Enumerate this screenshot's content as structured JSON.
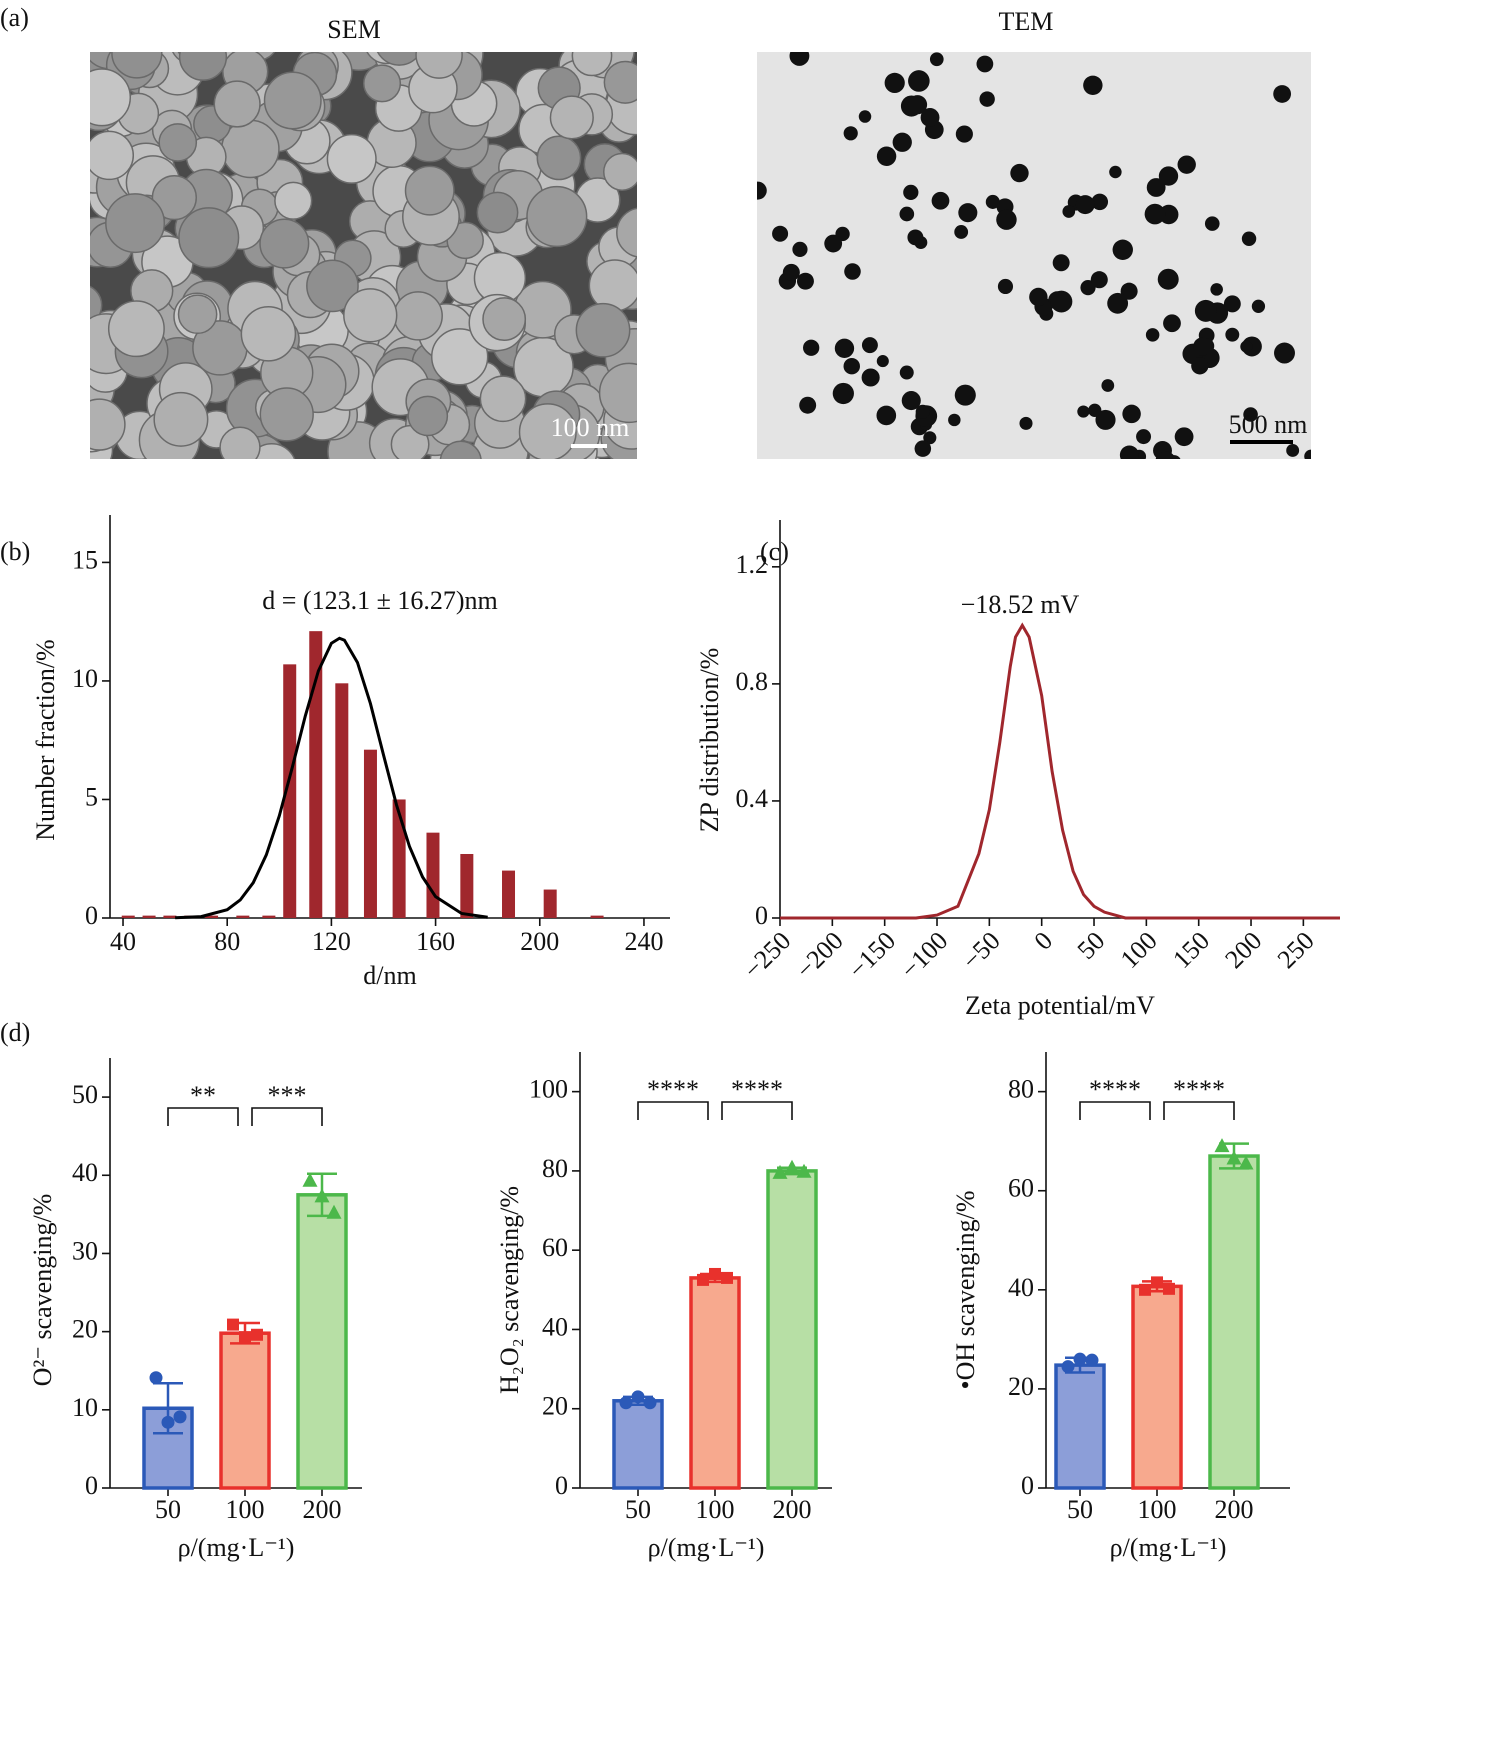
{
  "figure": {
    "panel_labels": [
      "(a)",
      "(b)",
      "(c)",
      "(d)"
    ],
    "images": [
      {
        "title": "SEM",
        "scale_bar": "100 nm"
      },
      {
        "title": "TEM",
        "scale_bar": "500 nm"
      }
    ]
  },
  "chart_data": [
    {
      "type": "bar",
      "x": [
        42,
        50,
        58,
        66,
        74,
        86,
        96,
        104,
        114,
        124,
        135,
        146,
        159,
        172,
        188,
        204,
        222
      ],
      "values": [
        0.1,
        0.1,
        0.1,
        0.1,
        0.1,
        0.1,
        0.1,
        10.7,
        12.1,
        9.9,
        7.1,
        5.0,
        3.6,
        2.7,
        2.0,
        1.2,
        0.1
      ],
      "color": "#a0272d",
      "annotation": "d = (123.1 ± 16.27)nm",
      "fit": {
        "color": "#000000",
        "x": [
          60,
          70,
          80,
          85,
          90,
          95,
          100,
          105,
          110,
          115,
          120,
          123.1,
          125,
          130,
          135,
          140,
          145,
          150,
          155,
          160,
          170,
          180
        ],
        "values": [
          0.01,
          0.06,
          0.35,
          0.76,
          1.49,
          2.66,
          4.31,
          6.36,
          8.53,
          10.42,
          11.59,
          11.8,
          11.72,
          10.78,
          9.04,
          6.88,
          4.77,
          3.01,
          1.73,
          0.9,
          0.19,
          0.03
        ]
      },
      "xlabel": "d/nm",
      "ylabel": "Number fraction/%",
      "xlim": [
        35,
        250
      ],
      "ylim": [
        0,
        17
      ],
      "xticks": [
        40,
        80,
        120,
        160,
        200,
        240
      ],
      "yticks": [
        0,
        5,
        10,
        15
      ]
    },
    {
      "type": "line",
      "x": [
        -250,
        -120,
        -100,
        -80,
        -60,
        -50,
        -40,
        -30,
        -25,
        -18.52,
        -12,
        0,
        10,
        20,
        30,
        40,
        50,
        60,
        80,
        285
      ],
      "values": [
        0,
        0,
        0.01,
        0.04,
        0.22,
        0.37,
        0.6,
        0.86,
        0.96,
        1.0,
        0.96,
        0.76,
        0.5,
        0.3,
        0.16,
        0.08,
        0.04,
        0.02,
        0,
        0
      ],
      "color": "#a0272d",
      "annotation": "−18.52 mV",
      "xlabel": "Zeta potential/mV",
      "ylabel": "ZP distribution/%",
      "xlim": [
        -250,
        285
      ],
      "ylim": [
        0,
        1.36
      ],
      "xticks": [
        {
          "value": -250,
          "label": "−250"
        },
        {
          "value": -200,
          "label": "−200"
        },
        {
          "value": -150,
          "label": "−150"
        },
        {
          "value": -100,
          "label": "−100"
        },
        {
          "value": -50,
          "label": "−50"
        },
        0,
        50,
        100,
        150,
        200,
        250
      ],
      "yticks": [
        0,
        0.4,
        0.8,
        1.2
      ]
    },
    {
      "type": "bar",
      "categories": [
        "50",
        "100",
        "200"
      ],
      "values": [
        10.2,
        19.8,
        37.5
      ],
      "errors": [
        3.2,
        1.3,
        2.7
      ],
      "points": [
        [
          14.1,
          8.4,
          9.1
        ],
        [
          20.9,
          19.3,
          19.6
        ],
        [
          39.3,
          37.3,
          35.2
        ]
      ],
      "colors": [
        "#8c9ed8",
        "#f7a98e",
        "#b7dfa5"
      ],
      "edge_colors": [
        "#2b59b8",
        "#e8312c",
        "#4cb84a"
      ],
      "markers": [
        "circle",
        "square",
        "triangle"
      ],
      "significance": [
        "**",
        "***"
      ],
      "xlabel": "ρ/(mg·L⁻¹)",
      "ylabel": "O²⁻ scavenging/%",
      "ylim": [
        0,
        55
      ],
      "yticks": [
        0,
        10,
        20,
        30,
        40,
        50
      ]
    },
    {
      "type": "bar",
      "categories": [
        "50",
        "100",
        "200"
      ],
      "values": [
        22,
        53,
        80
      ],
      "errors": [
        1,
        1,
        0.8
      ],
      "points": [
        [
          21.5,
          23,
          21.5
        ],
        [
          52.5,
          54,
          53
        ],
        [
          79.5,
          80.8,
          79.8
        ]
      ],
      "colors": [
        "#8c9ed8",
        "#f7a98e",
        "#b7dfa5"
      ],
      "edge_colors": [
        "#2b59b8",
        "#e8312c",
        "#4cb84a"
      ],
      "markers": [
        "circle",
        "square",
        "triangle"
      ],
      "significance": [
        "****",
        "****"
      ],
      "xlabel": "ρ/(mg·L⁻¹)",
      "ylabel": "H₂O₂ scavenging/%",
      "ylim": [
        0,
        110
      ],
      "yticks": [
        0,
        20,
        40,
        60,
        80,
        100
      ]
    },
    {
      "type": "bar",
      "categories": [
        "50",
        "100",
        "200"
      ],
      "values": [
        24.8,
        40.7,
        67
      ],
      "errors": [
        1.5,
        1,
        2.5
      ],
      "points": [
        [
          24.5,
          26,
          25.8
        ],
        [
          40,
          41.5,
          40.2
        ],
        [
          69,
          66.5,
          65.5
        ]
      ],
      "colors": [
        "#8c9ed8",
        "#f7a98e",
        "#b7dfa5"
      ],
      "edge_colors": [
        "#2b59b8",
        "#e8312c",
        "#4cb84a"
      ],
      "markers": [
        "circle",
        "square",
        "triangle"
      ],
      "significance": [
        "****",
        "****"
      ],
      "xlabel": "ρ/(mg·L⁻¹)",
      "ylabel": "•OH scavenging/%",
      "ylim": [
        0,
        88
      ],
      "yticks": [
        0,
        20,
        40,
        60,
        80
      ]
    }
  ]
}
